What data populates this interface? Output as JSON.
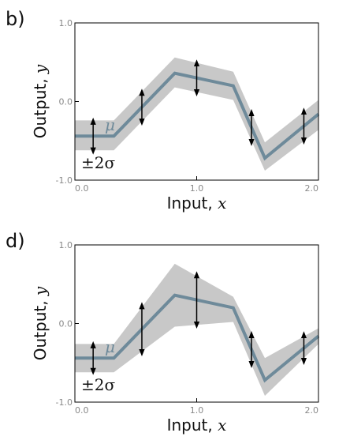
{
  "style": {
    "band_color": "#c8c8c8",
    "mean_color": "#6e8a9a",
    "arrow_color": "#000000"
  },
  "chart_data": [
    {
      "type": "line",
      "panel_label": "b)",
      "xlabel_text": "Input, ",
      "xlabel_var": "x",
      "ylabel_text": "Output, ",
      "ylabel_var": "y",
      "xlim": [
        0.0,
        2.0
      ],
      "ylim": [
        -1.0,
        1.0
      ],
      "xticks": [
        0.0,
        1.0,
        2.0
      ],
      "xtick_labels": [
        "0.0",
        "1.0",
        "2.0"
      ],
      "yticks": [
        -1.0,
        0.0,
        1.0
      ],
      "ytick_labels": [
        "-1.0",
        "0.0",
        "1.0"
      ],
      "grid": false,
      "x": [
        0.0,
        0.32,
        0.82,
        1.3,
        1.56,
        2.0
      ],
      "mean": [
        -0.44,
        -0.44,
        0.36,
        0.2,
        -0.72,
        -0.16
      ],
      "lower": [
        -0.62,
        -0.62,
        0.18,
        0.02,
        -0.88,
        -0.36
      ],
      "upper": [
        -0.24,
        -0.24,
        0.56,
        0.38,
        -0.52,
        0.02
      ],
      "arrows_x": [
        0.15,
        0.55,
        1.0,
        1.45,
        1.88
      ],
      "arrows_half_width": [
        0.19,
        0.19,
        0.19,
        0.19,
        0.19
      ],
      "annotations": {
        "mean": "μ",
        "band": "±2σ"
      }
    },
    {
      "type": "line",
      "panel_label": "d)",
      "xlabel_text": "Input, ",
      "xlabel_var": "x",
      "ylabel_text": "Output, ",
      "ylabel_var": "y",
      "xlim": [
        0.0,
        2.0
      ],
      "ylim": [
        -1.0,
        1.0
      ],
      "xticks": [
        0.0,
        1.0,
        2.0
      ],
      "xtick_labels": [
        "0.0",
        "1.0",
        "2.0"
      ],
      "yticks": [
        -1.0,
        0.0,
        1.0
      ],
      "ytick_labels": [
        "-1.0",
        "0.0",
        "1.0"
      ],
      "grid": false,
      "x": [
        0.0,
        0.32,
        0.82,
        1.3,
        1.56,
        2.0
      ],
      "mean": [
        -0.44,
        -0.44,
        0.36,
        0.2,
        -0.72,
        -0.16
      ],
      "lower": [
        -0.62,
        -0.62,
        -0.04,
        0.02,
        -0.92,
        -0.26
      ],
      "upper": [
        -0.26,
        -0.26,
        0.76,
        0.34,
        -0.44,
        -0.06
      ],
      "arrows_x": [
        0.15,
        0.55,
        1.0,
        1.45,
        1.88
      ],
      "arrows_half_width": [
        0.17,
        0.3,
        0.32,
        0.19,
        0.17
      ],
      "annotations": {
        "mean": "μ",
        "band": "±2σ"
      }
    }
  ]
}
